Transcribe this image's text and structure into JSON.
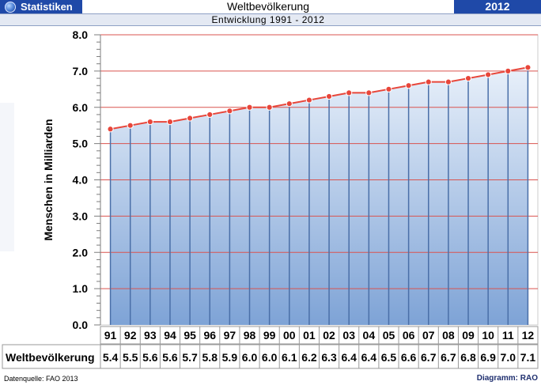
{
  "header": {
    "app_label": "Statistiken",
    "title": "Weltbevölkerung",
    "year": "2012",
    "subtitle": "Entwicklung 1991 - 2012"
  },
  "footer": {
    "source": "Datenquelle: FAO 2013",
    "credit": "Diagramm: RAO"
  },
  "colors": {
    "header_bg": "#1f49a8",
    "line": "#e8463a",
    "marker": "#e8463a",
    "stem": "#4a6fa8",
    "area_top": "#e8f0fa",
    "area_bottom": "#7ea3d6",
    "gridline": "#d9534f"
  },
  "icons": {
    "logo": "globe-icon"
  },
  "chart_data": {
    "type": "line",
    "ylabel": "Menschen in Milliarden",
    "ylim": [
      0,
      8
    ],
    "yticks": [
      "0.0",
      "1.0",
      "2.0",
      "3.0",
      "4.0",
      "5.0",
      "6.0",
      "7.0",
      "8.0"
    ],
    "grid": true,
    "categories": [
      "91",
      "92",
      "93",
      "94",
      "95",
      "96",
      "97",
      "98",
      "99",
      "00",
      "01",
      "02",
      "03",
      "04",
      "05",
      "06",
      "07",
      "08",
      "09",
      "10",
      "11",
      "12"
    ],
    "series": [
      {
        "name": "Weltbevölkerung",
        "values": [
          5.4,
          5.5,
          5.6,
          5.6,
          5.7,
          5.8,
          5.9,
          6.0,
          6.0,
          6.1,
          6.2,
          6.3,
          6.4,
          6.4,
          6.5,
          6.6,
          6.7,
          6.7,
          6.8,
          6.9,
          7.0,
          7.1
        ],
        "labels": [
          "5.4",
          "5.5",
          "5.6",
          "5.6",
          "5.7",
          "5.8",
          "5.9",
          "6.0",
          "6.0",
          "6.1",
          "6.2",
          "6.3",
          "6.4",
          "6.4",
          "6.5",
          "6.6",
          "6.7",
          "6.7",
          "6.8",
          "6.9",
          "7.0",
          "7.1"
        ]
      }
    ]
  }
}
